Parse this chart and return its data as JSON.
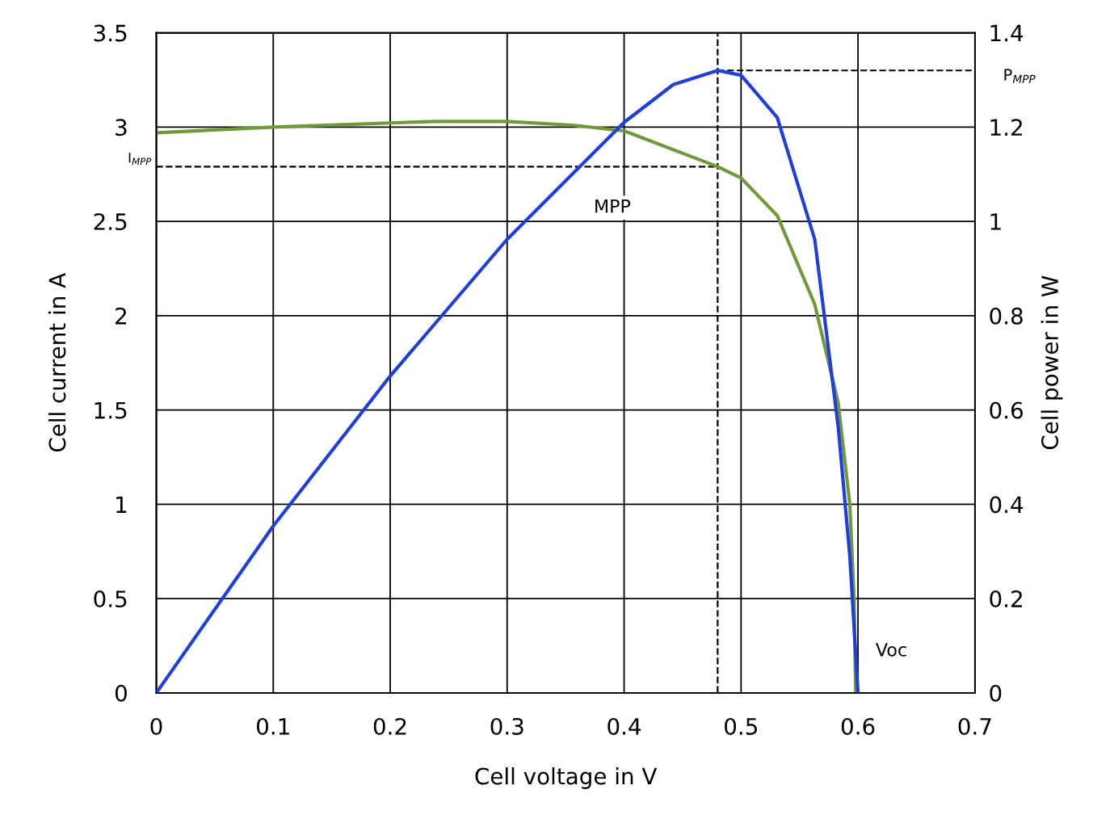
{
  "chart_data": {
    "type": "line",
    "xlabel": "Cell voltage in V",
    "ylabel": "Cell current in A",
    "y2label": "Cell power in W",
    "series": [
      {
        "color": "#6f9a3a",
        "axis": "y",
        "x": [
          0,
          0.1,
          0.237,
          0.3,
          0.356,
          0.4,
          0.48,
          0.5,
          0.531,
          0.563,
          0.583,
          0.593,
          0.5967,
          0.598
        ],
        "values": [
          2.97,
          3.0,
          3.03,
          3.03,
          3.01,
          2.98,
          2.79,
          2.73,
          2.53,
          2.06,
          1.54,
          1.0,
          0.49,
          0
        ]
      },
      {
        "color": "#1f3fdc",
        "axis": "y2",
        "x": [
          0,
          0.1,
          0.2,
          0.3,
          0.4,
          0.442,
          0.48,
          0.5,
          0.531,
          0.563,
          0.583,
          0.593,
          0.6
        ],
        "values": [
          0,
          0.354,
          0.672,
          0.962,
          1.21,
          1.29,
          1.32,
          1.31,
          1.22,
          0.962,
          0.566,
          0.29,
          0
        ]
      }
    ],
    "xlim": [
      0,
      0.7
    ],
    "xticks": [
      0,
      0.1,
      0.2,
      0.3,
      0.4,
      0.5,
      0.6,
      0.7
    ],
    "ylim": [
      0,
      3.5
    ],
    "yticks": [
      0,
      0.5,
      1,
      1.5,
      2,
      2.5,
      3,
      3.5
    ],
    "y2lim": [
      0,
      1.4
    ],
    "y2ticks": [
      0,
      0.2,
      0.4,
      0.6,
      0.8,
      1,
      1.2,
      1.4
    ],
    "ref_lines": [
      {
        "axis": "x",
        "value": 0.48,
        "label": null,
        "color": "#000000",
        "line_style": "dashed"
      },
      {
        "axis": "y",
        "value": 2.79,
        "label": "I$_{MPP}$",
        "color": "#000000",
        "line_style": "dashed"
      },
      {
        "axis": "y2",
        "value": 1.32,
        "label": "P$_{MPP}$",
        "color": "#000000",
        "line_style": "dashed"
      }
    ],
    "annotations": [
      "MPP",
      "Voc"
    ],
    "grid": true,
    "marker": "none",
    "line_style": "solid"
  }
}
